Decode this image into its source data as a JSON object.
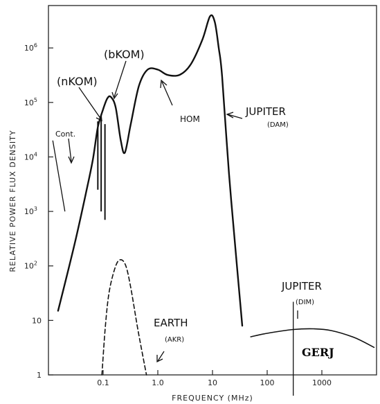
{
  "chart_data": {
    "type": "line",
    "xlabel": "FREQUENCY (MHz)",
    "ylabel": "RELATIVE POWER FLUX DENSITY",
    "x_scale": "log",
    "y_scale": "log",
    "xlim": [
      0.01,
      10000
    ],
    "ylim": [
      1,
      6000000
    ],
    "x_ticks": [
      {
        "value": 0.1,
        "label": "0.1"
      },
      {
        "value": 1,
        "label": "1.0"
      },
      {
        "value": 10,
        "label": "10"
      },
      {
        "value": 100,
        "label": "100"
      },
      {
        "value": 1000,
        "label": "1000"
      }
    ],
    "y_ticks": [
      {
        "value": 1,
        "label": "1",
        "exp": ""
      },
      {
        "value": 10,
        "label": "10",
        "exp": ""
      },
      {
        "value": 100,
        "label": "10",
        "exp": "2"
      },
      {
        "value": 1000,
        "label": "10",
        "exp": "3"
      },
      {
        "value": 10000,
        "label": "10",
        "exp": "4"
      },
      {
        "value": 100000,
        "label": "10",
        "exp": "5"
      },
      {
        "value": 1000000,
        "label": "10",
        "exp": "6"
      }
    ],
    "series": [
      {
        "style": "solid",
        "points": [
          [
            0.015,
            15
          ],
          [
            0.03,
            250
          ],
          [
            0.05,
            2500
          ],
          [
            0.065,
            9000
          ],
          [
            0.08,
            35000
          ],
          [
            0.1,
            75000
          ],
          [
            0.12,
            120000
          ],
          [
            0.14,
            125000
          ],
          [
            0.17,
            80000
          ],
          [
            0.21,
            20000
          ],
          [
            0.25,
            12000
          ],
          [
            0.32,
            40000
          ],
          [
            0.45,
            200000
          ],
          [
            0.65,
            400000
          ],
          [
            1.0,
            400000
          ],
          [
            1.5,
            320000
          ],
          [
            2.5,
            320000
          ],
          [
            4.0,
            500000
          ],
          [
            6.5,
            1400000
          ],
          [
            9.0,
            3800000
          ],
          [
            11.0,
            3000000
          ],
          [
            13.0,
            1000000
          ],
          [
            15.0,
            300000
          ],
          [
            20.0,
            5000
          ],
          [
            28.0,
            100
          ],
          [
            35.0,
            8
          ]
        ]
      },
      {
        "style": "dashed",
        "points": [
          [
            0.095,
            1
          ],
          [
            0.11,
            8
          ],
          [
            0.13,
            35
          ],
          [
            0.17,
            100
          ],
          [
            0.21,
            130
          ],
          [
            0.26,
            100
          ],
          [
            0.32,
            40
          ],
          [
            0.42,
            8
          ],
          [
            0.52,
            2.5
          ],
          [
            0.62,
            1
          ]
        ]
      },
      {
        "style": "solid",
        "points": [
          [
            50,
            5
          ],
          [
            100,
            5.8
          ],
          [
            300,
            6.8
          ],
          [
            700,
            7
          ],
          [
            1500,
            6.5
          ],
          [
            4000,
            4.8
          ],
          [
            9000,
            3.2
          ]
        ]
      }
    ],
    "spikes": [
      {
        "x": 0.08,
        "y_top": 45000,
        "y_bottom": 2500
      },
      {
        "x": 0.092,
        "y_top": 60000,
        "y_bottom": 1000
      },
      {
        "x": 0.108,
        "y_top": 40000,
        "y_bottom": 700
      }
    ],
    "cont_line": {
      "from": [
        0.012,
        20000
      ],
      "to": [
        0.02,
        1000
      ]
    },
    "divider_x": 300,
    "annotations": {
      "bkom": "(bKOM)",
      "nkom": "(nKOM)",
      "cont": "Cont.",
      "hom": "HOM",
      "jupiter_dam": "JUPITER",
      "dam": "(DAM)",
      "earth": "EARTH",
      "akr": "(AKR)",
      "jupiter_dim": "JUPITER",
      "dim": "(DIM)",
      "gerj": "GERJ"
    }
  }
}
